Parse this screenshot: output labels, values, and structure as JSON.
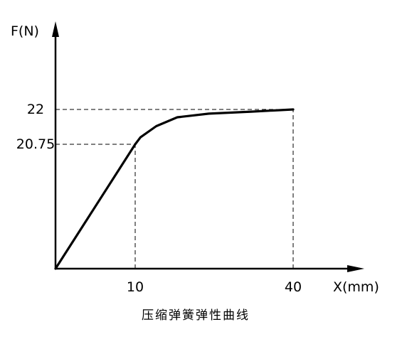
{
  "chart_data": {
    "type": "line",
    "title": "",
    "xlabel": "X(mm)",
    "ylabel": "F(N)",
    "caption": "压缩弹簧弹性曲线",
    "x_ticks": [
      {
        "value": 10,
        "label": "10"
      },
      {
        "value": 40,
        "label": "40"
      }
    ],
    "y_ticks": [
      {
        "value": 20.75,
        "label": "20.75"
      },
      {
        "value": 22,
        "label": "22"
      }
    ],
    "series": [
      {
        "points": [
          {
            "x": 0,
            "y": 0
          },
          {
            "x": 10,
            "y": 20.75
          },
          {
            "x": 11,
            "y": 21.0
          },
          {
            "x": 14,
            "y": 21.4
          },
          {
            "x": 18,
            "y": 21.72
          },
          {
            "x": 24,
            "y": 21.85
          },
          {
            "x": 32,
            "y": 21.92
          },
          {
            "x": 40,
            "y": 22
          }
        ]
      }
    ],
    "reference_lines": [
      {
        "from": {
          "x": 0,
          "y": 22
        },
        "to": {
          "x": 40,
          "y": 22
        }
      },
      {
        "from": {
          "x": 0,
          "y": 20.75
        },
        "to": {
          "x": 10,
          "y": 20.75
        }
      },
      {
        "from": {
          "x": 10,
          "y": 0
        },
        "to": {
          "x": 10,
          "y": 20.75
        }
      },
      {
        "from": {
          "x": 40,
          "y": 0
        },
        "to": {
          "x": 40,
          "y": 22
        }
      }
    ],
    "grid": false,
    "colors": {
      "line": "#000000",
      "background": "#ffffff"
    }
  }
}
